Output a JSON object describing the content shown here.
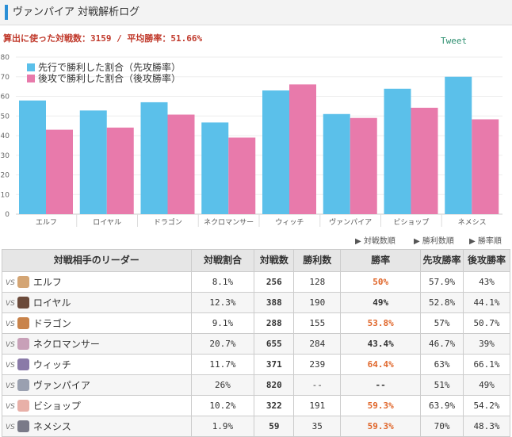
{
  "header": {
    "title": "ヴァンパイア 対戦解析ログ"
  },
  "stats": {
    "text": "算出に使った対戦数：3159 / 平均勝率：51.66%"
  },
  "tweet": {
    "label": "Tweet"
  },
  "chart_data": {
    "type": "bar",
    "categories": [
      "エルフ",
      "ロイヤル",
      "ドラゴン",
      "ネクロマンサー",
      "ウィッチ",
      "ヴァンパイア",
      "ビショップ",
      "ネメシス"
    ],
    "series": [
      {
        "name": "先行で勝利した割合（先攻勝率）",
        "color": "#5bc0ea",
        "values": [
          57.9,
          52.8,
          57,
          46.7,
          63,
          51,
          63.9,
          70
        ]
      },
      {
        "name": "後攻で勝利した割合（後攻勝率）",
        "color": "#e87aab",
        "values": [
          43,
          44.1,
          50.7,
          39,
          66.1,
          49,
          54.2,
          48.3
        ]
      }
    ],
    "yticks": [
      "0",
      "10",
      "20",
      "30",
      "40",
      "50",
      "60",
      "70",
      "80"
    ],
    "ylim": [
      0,
      80
    ]
  },
  "sort": {
    "battles": "▶ 対戦数順",
    "wins": "▶ 勝利数順",
    "rate": "▶ 勝率順"
  },
  "table": {
    "headers": {
      "leader": "対戦相手のリーダー",
      "share": "対戦割合",
      "battles": "対戦数",
      "wins": "勝利数",
      "rate": "勝率",
      "first": "先攻勝率",
      "second": "後攻勝率"
    },
    "vs": "VS",
    "rows": [
      {
        "leader": "エルフ",
        "share": "8.1%",
        "battles": "256",
        "wins": "128",
        "rate": "50%",
        "first": "57.9%",
        "second": "43%",
        "hi": true,
        "color": "#d4a574"
      },
      {
        "leader": "ロイヤル",
        "share": "12.3%",
        "battles": "388",
        "wins": "190",
        "rate": "49%",
        "first": "52.8%",
        "second": "44.1%",
        "hi": false,
        "color": "#6b4a3a"
      },
      {
        "leader": "ドラゴン",
        "share": "9.1%",
        "battles": "288",
        "wins": "155",
        "rate": "53.8%",
        "first": "57%",
        "second": "50.7%",
        "hi": true,
        "color": "#c9834a"
      },
      {
        "leader": "ネクロマンサー",
        "share": "20.7%",
        "battles": "655",
        "wins": "284",
        "rate": "43.4%",
        "first": "46.7%",
        "second": "39%",
        "hi": false,
        "color": "#c8a0b8"
      },
      {
        "leader": "ウィッチ",
        "share": "11.7%",
        "battles": "371",
        "wins": "239",
        "rate": "64.4%",
        "first": "63%",
        "second": "66.1%",
        "hi": true,
        "color": "#8a7aa8"
      },
      {
        "leader": "ヴァンパイア",
        "share": "26%",
        "battles": "820",
        "wins": "--",
        "rate": "--",
        "first": "51%",
        "second": "49%",
        "hi": false,
        "color": "#9aa0b0"
      },
      {
        "leader": "ビショップ",
        "share": "10.2%",
        "battles": "322",
        "wins": "191",
        "rate": "59.3%",
        "first": "63.9%",
        "second": "54.2%",
        "hi": true,
        "color": "#e8b0a8"
      },
      {
        "leader": "ネメシス",
        "share": "1.9%",
        "battles": "59",
        "wins": "35",
        "rate": "59.3%",
        "first": "70%",
        "second": "48.3%",
        "hi": true,
        "color": "#7a7a88"
      }
    ]
  }
}
